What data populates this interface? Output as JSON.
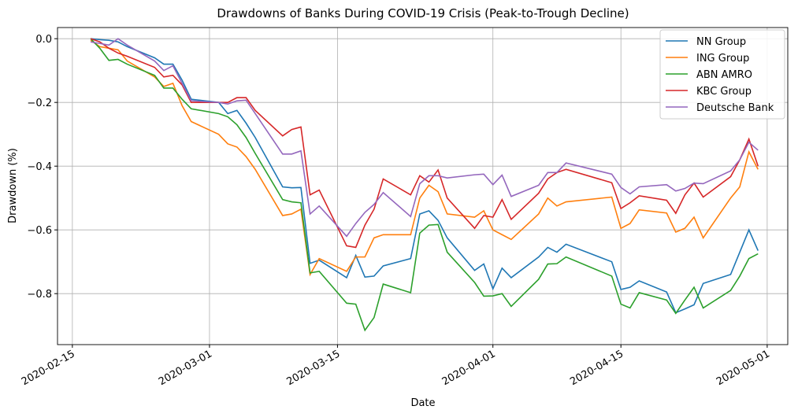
{
  "chart_data": {
    "type": "line",
    "title": "Drawdowns of Banks During COVID-19 Crisis (Peak-to-Trough Decline)",
    "x_label": "Date",
    "y_label": "Drawdown (%)",
    "x": [
      "2020-02-17",
      "2020-02-18",
      "2020-02-19",
      "2020-02-20",
      "2020-02-21",
      "2020-02-24",
      "2020-02-25",
      "2020-02-26",
      "2020-02-27",
      "2020-02-28",
      "2020-03-02",
      "2020-03-03",
      "2020-03-04",
      "2020-03-05",
      "2020-03-06",
      "2020-03-09",
      "2020-03-10",
      "2020-03-11",
      "2020-03-12",
      "2020-03-13",
      "2020-03-16",
      "2020-03-17",
      "2020-03-18",
      "2020-03-19",
      "2020-03-20",
      "2020-03-23",
      "2020-03-24",
      "2020-03-25",
      "2020-03-26",
      "2020-03-27",
      "2020-03-30",
      "2020-03-31",
      "2020-04-01",
      "2020-04-02",
      "2020-04-03",
      "2020-04-06",
      "2020-04-07",
      "2020-04-08",
      "2020-04-09",
      "2020-04-14",
      "2020-04-15",
      "2020-04-16",
      "2020-04-17",
      "2020-04-20",
      "2020-04-21",
      "2020-04-22",
      "2020-04-23",
      "2020-04-24",
      "2020-04-27",
      "2020-04-28",
      "2020-04-29",
      "2020-04-30"
    ],
    "series": [
      {
        "name": "NN Group",
        "color": "#1f77b4",
        "values": [
          0.0,
          -0.003,
          -0.005,
          -0.01,
          -0.025,
          -0.06,
          -0.08,
          -0.08,
          -0.13,
          -0.19,
          -0.2,
          -0.235,
          -0.225,
          -0.265,
          -0.31,
          -0.465,
          -0.468,
          -0.467,
          -0.705,
          -0.695,
          -0.75,
          -0.68,
          -0.748,
          -0.745,
          -0.713,
          -0.69,
          -0.55,
          -0.54,
          -0.57,
          -0.625,
          -0.727,
          -0.707,
          -0.785,
          -0.72,
          -0.75,
          -0.685,
          -0.655,
          -0.67,
          -0.645,
          -0.7,
          -0.787,
          -0.78,
          -0.76,
          -0.795,
          -0.86,
          -0.848,
          -0.835,
          -0.768,
          -0.74,
          -0.67,
          -0.6,
          -0.665
        ]
      },
      {
        "name": "ING Group",
        "color": "#ff7f0e",
        "values": [
          -0.005,
          -0.025,
          -0.03,
          -0.035,
          -0.07,
          -0.12,
          -0.15,
          -0.14,
          -0.21,
          -0.26,
          -0.3,
          -0.33,
          -0.34,
          -0.37,
          -0.41,
          -0.555,
          -0.55,
          -0.535,
          -0.74,
          -0.69,
          -0.73,
          -0.685,
          -0.685,
          -0.625,
          -0.615,
          -0.615,
          -0.5,
          -0.46,
          -0.48,
          -0.55,
          -0.56,
          -0.54,
          -0.6,
          -0.615,
          -0.63,
          -0.55,
          -0.5,
          -0.525,
          -0.512,
          -0.497,
          -0.595,
          -0.58,
          -0.537,
          -0.547,
          -0.607,
          -0.595,
          -0.56,
          -0.625,
          -0.5,
          -0.465,
          -0.355,
          -0.41
        ]
      },
      {
        "name": "ABN AMRO",
        "color": "#2ca02c",
        "values": [
          0.0,
          -0.03,
          -0.068,
          -0.065,
          -0.08,
          -0.115,
          -0.155,
          -0.155,
          -0.19,
          -0.22,
          -0.235,
          -0.245,
          -0.27,
          -0.31,
          -0.36,
          -0.505,
          -0.512,
          -0.515,
          -0.735,
          -0.73,
          -0.83,
          -0.833,
          -0.915,
          -0.875,
          -0.77,
          -0.797,
          -0.61,
          -0.585,
          -0.583,
          -0.67,
          -0.765,
          -0.808,
          -0.807,
          -0.8,
          -0.84,
          -0.755,
          -0.707,
          -0.706,
          -0.685,
          -0.745,
          -0.833,
          -0.845,
          -0.797,
          -0.82,
          -0.862,
          -0.82,
          -0.78,
          -0.845,
          -0.79,
          -0.745,
          -0.69,
          -0.675
        ]
      },
      {
        "name": "KBC Group",
        "color": "#d62728",
        "values": [
          0.0,
          -0.01,
          -0.03,
          -0.045,
          -0.055,
          -0.09,
          -0.12,
          -0.115,
          -0.145,
          -0.2,
          -0.2,
          -0.2,
          -0.185,
          -0.185,
          -0.225,
          -0.305,
          -0.285,
          -0.277,
          -0.49,
          -0.475,
          -0.65,
          -0.655,
          -0.585,
          -0.535,
          -0.44,
          -0.49,
          -0.43,
          -0.45,
          -0.412,
          -0.5,
          -0.595,
          -0.555,
          -0.56,
          -0.505,
          -0.567,
          -0.485,
          -0.44,
          -0.42,
          -0.41,
          -0.452,
          -0.533,
          -0.515,
          -0.493,
          -0.507,
          -0.548,
          -0.49,
          -0.453,
          -0.497,
          -0.433,
          -0.38,
          -0.315,
          -0.4
        ]
      },
      {
        "name": "Deutsche Bank",
        "color": "#9467bd",
        "values": [
          -0.01,
          -0.015,
          -0.02,
          0.0,
          -0.02,
          -0.07,
          -0.1,
          -0.085,
          -0.14,
          -0.195,
          -0.2,
          -0.205,
          -0.195,
          -0.193,
          -0.235,
          -0.362,
          -0.362,
          -0.352,
          -0.55,
          -0.525,
          -0.62,
          -0.58,
          -0.545,
          -0.52,
          -0.483,
          -0.558,
          -0.455,
          -0.43,
          -0.43,
          -0.437,
          -0.427,
          -0.425,
          -0.458,
          -0.428,
          -0.495,
          -0.46,
          -0.42,
          -0.42,
          -0.39,
          -0.425,
          -0.467,
          -0.487,
          -0.465,
          -0.458,
          -0.478,
          -0.47,
          -0.453,
          -0.455,
          -0.415,
          -0.38,
          -0.325,
          -0.35
        ]
      }
    ],
    "xlim": [
      "2020-02-13T09:00",
      "2020-05-03T06:00"
    ],
    "xticks": [
      "2020-02-15",
      "2020-03-01",
      "2020-03-15",
      "2020-04-01",
      "2020-04-15",
      "2020-05-01"
    ],
    "ylim": [
      -0.96,
      0.035
    ],
    "yticks": [
      {
        "value": 0,
        "label": "0.0"
      },
      {
        "value": -0.2,
        "label": "−0.2"
      },
      {
        "value": -0.4,
        "label": "−0.4"
      },
      {
        "value": -0.6,
        "label": "−0.6"
      },
      {
        "value": -0.8,
        "label": "−0.8"
      }
    ],
    "grid": true,
    "legend": "upper right"
  }
}
